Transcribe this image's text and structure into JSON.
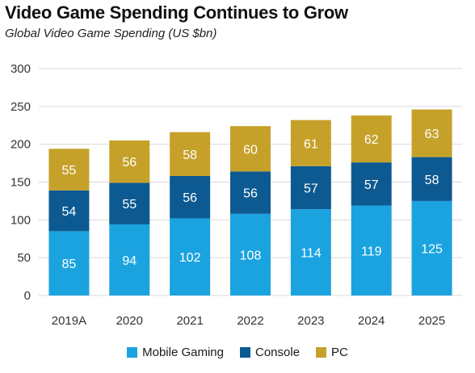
{
  "title": "Video Game Spending Continues to Grow",
  "subtitle": "Global Video Game Spending (US $bn)",
  "colors": {
    "mobile": "#1ba3e0",
    "console": "#0d5a92",
    "pc": "#c6a12a",
    "grid": "#d9d9d9",
    "label": "#ffffff",
    "dark_label": "#333333"
  },
  "chart_data": {
    "type": "bar",
    "stacked": true,
    "categories": [
      "2019A",
      "2020",
      "2021",
      "2022",
      "2023",
      "2024",
      "2025"
    ],
    "series": [
      {
        "name": "Mobile Gaming",
        "key": "mobile",
        "values": [
          85,
          94,
          102,
          108,
          114,
          119,
          125
        ]
      },
      {
        "name": "Console",
        "key": "console",
        "values": [
          54,
          55,
          56,
          56,
          57,
          57,
          58
        ]
      },
      {
        "name": "PC",
        "key": "pc",
        "values": [
          55,
          56,
          58,
          60,
          61,
          62,
          63
        ]
      }
    ],
    "yticks": [
      0,
      50,
      100,
      150,
      200,
      250,
      300
    ],
    "ylim": [
      0,
      300
    ],
    "grid": true,
    "legend_position": "bottom"
  }
}
